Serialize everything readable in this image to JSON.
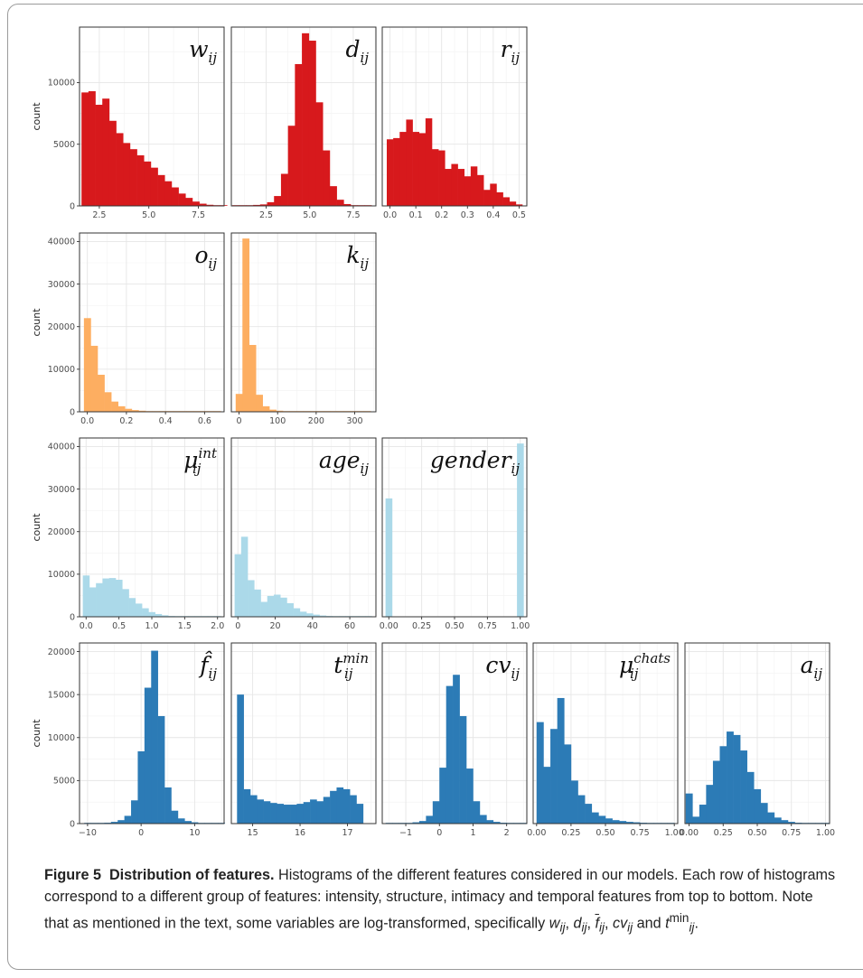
{
  "caption": {
    "figure_label": "Figure 5",
    "title": "Distribution of features.",
    "text_1": "Histograms of the different features considered in our models. Each row of histograms correspond to a different group of features: intensity, structure, intimacy and temporal features from top to bottom. Note that as mentioned in the text, some variables are log-transformed, specifically",
    "var_w": "w",
    "var_d": "d",
    "var_f": "f",
    "var_cv": "cv",
    "var_t": "t",
    "sub_ij": "ij",
    "sup_min": "min",
    "sep": ", ",
    "and": " and ",
    "end": "."
  },
  "colors": {
    "intensity": "#d7191c",
    "structure": "#fdae61",
    "intimacy": "#abd9e9",
    "temporal": "#2c7bb6"
  },
  "chart_data": [
    {
      "type": "histogram",
      "row": 1,
      "label": "w",
      "sub": "ij",
      "color": "#d7191c",
      "ylabel": "count",
      "xlim": [
        1.5,
        8.8
      ],
      "ylim": [
        0,
        14500
      ],
      "xticks": [
        2.5,
        5.0,
        7.5
      ],
      "xtick_labels": [
        "2.5",
        "5.0",
        "7.5"
      ],
      "yticks": [
        0,
        5000,
        10000
      ],
      "ytick_labels": [
        "0",
        "5000",
        "10000"
      ],
      "bin_start": 1.6,
      "bin_width": 0.35,
      "values": [
        9200,
        9300,
        8200,
        8700,
        6900,
        5900,
        5100,
        4600,
        4100,
        3600,
        3100,
        2500,
        2000,
        1500,
        1000,
        650,
        350,
        180,
        90,
        60,
        30
      ]
    },
    {
      "type": "histogram",
      "row": 1,
      "label": "d",
      "sub": "ij",
      "color": "#d7191c",
      "ylabel": "",
      "xlim": [
        0.5,
        8.8
      ],
      "ylim": [
        0,
        14500
      ],
      "xticks": [
        2.5,
        5.0,
        7.5
      ],
      "xtick_labels": [
        "2.5",
        "5.0",
        "7.5"
      ],
      "yticks": [],
      "ytick_labels": [],
      "bin_start": 0.55,
      "bin_width": 0.4,
      "values": [
        20,
        30,
        50,
        80,
        120,
        300,
        800,
        2600,
        6500,
        11500,
        14000,
        13400,
        8400,
        4500,
        1600,
        500,
        150,
        60,
        30,
        20
      ]
    },
    {
      "type": "histogram",
      "row": 1,
      "label": "r",
      "sub": "ij",
      "color": "#d7191c",
      "ylabel": "",
      "xlim": [
        -0.03,
        0.53
      ],
      "ylim": [
        0,
        14500
      ],
      "xticks": [
        0.0,
        0.1,
        0.2,
        0.3,
        0.4,
        0.5
      ],
      "xtick_labels": [
        "0.0",
        "0.1",
        "0.2",
        "0.3",
        "0.4",
        "0.5"
      ],
      "yticks": [],
      "ytick_labels": [],
      "bin_start": -0.0125,
      "bin_width": 0.025,
      "values": [
        5400,
        5500,
        6000,
        7000,
        6000,
        5900,
        7100,
        4600,
        4500,
        3000,
        3400,
        3000,
        2400,
        3200,
        2500,
        1300,
        1800,
        1100,
        700,
        350,
        120
      ]
    },
    {
      "type": "histogram",
      "row": 2,
      "label": "o",
      "sub": "ij",
      "color": "#fdae61",
      "ylabel": "count",
      "xlim": [
        -0.04,
        0.7
      ],
      "ylim": [
        0,
        42000
      ],
      "xticks": [
        0.0,
        0.2,
        0.4,
        0.6
      ],
      "xtick_labels": [
        "0.0",
        "0.2",
        "0.4",
        "0.6"
      ],
      "yticks": [
        0,
        10000,
        20000,
        30000,
        40000
      ],
      "ytick_labels": [
        "0",
        "10000",
        "20000",
        "30000",
        "40000"
      ],
      "bin_start": -0.0175,
      "bin_width": 0.035,
      "values": [
        22000,
        15500,
        8700,
        4600,
        2400,
        1300,
        700,
        400,
        250,
        150,
        100,
        80,
        60,
        50,
        40,
        30,
        20,
        15,
        10,
        10
      ]
    },
    {
      "type": "histogram",
      "row": 2,
      "label": "k",
      "sub": "ij",
      "color": "#fdae61",
      "ylabel": "",
      "xlim": [
        -20,
        355
      ],
      "ylim": [
        0,
        42000
      ],
      "xticks": [
        0,
        100,
        200,
        300
      ],
      "xtick_labels": [
        "0",
        "100",
        "200",
        "300"
      ],
      "yticks": [],
      "ytick_labels": [],
      "bin_start": -8.75,
      "bin_width": 17.5,
      "values": [
        4200,
        40700,
        15700,
        4000,
        1300,
        500,
        250,
        150,
        100,
        80,
        60,
        50,
        40,
        30,
        20,
        15,
        10,
        10,
        5,
        5
      ]
    },
    {
      "type": "histogram",
      "row": 3,
      "label": "μ",
      "sub": "ij",
      "sup": "int",
      "color": "#abd9e9",
      "ylabel": "count",
      "xlim": [
        -0.1,
        2.1
      ],
      "ylim": [
        0,
        42000
      ],
      "xticks": [
        0.0,
        0.5,
        1.0,
        1.5,
        2.0
      ],
      "xtick_labels": [
        "0.0",
        "0.5",
        "1.0",
        "1.5",
        "2.0"
      ],
      "yticks": [
        0,
        10000,
        20000,
        30000,
        40000
      ],
      "ytick_labels": [
        "0",
        "10000",
        "20000",
        "30000",
        "40000"
      ],
      "bin_start": -0.05,
      "bin_width": 0.1,
      "values": [
        9700,
        6900,
        7900,
        9000,
        9100,
        8700,
        6500,
        4400,
        3100,
        2000,
        1100,
        650,
        350,
        200,
        120,
        80,
        50,
        30,
        20,
        10,
        5
      ]
    },
    {
      "type": "histogram",
      "row": 3,
      "label": "age",
      "sub": "ij",
      "color": "#abd9e9",
      "ylabel": "",
      "xlim": [
        -3.5,
        74
      ],
      "ylim": [
        0,
        42000
      ],
      "xticks": [
        0,
        20,
        40,
        60
      ],
      "xtick_labels": [
        "0",
        "20",
        "40",
        "60"
      ],
      "yticks": [],
      "ytick_labels": [],
      "bin_start": -1.75,
      "bin_width": 3.5,
      "values": [
        14700,
        18800,
        8600,
        6400,
        3500,
        4900,
        5200,
        4500,
        3200,
        2000,
        1200,
        800,
        500,
        300,
        200,
        100,
        80,
        50,
        30,
        20,
        10
      ]
    },
    {
      "type": "histogram",
      "row": 3,
      "label": "gender",
      "sub": "ij",
      "color": "#abd9e9",
      "ylabel": "",
      "xlim": [
        -0.05,
        1.05
      ],
      "ylim": [
        0,
        42000
      ],
      "xticks": [
        0.0,
        0.25,
        0.5,
        0.75,
        1.0
      ],
      "xtick_labels": [
        "0.00",
        "0.25",
        "0.50",
        "0.75",
        "1.00"
      ],
      "yticks": [],
      "ytick_labels": [],
      "bin_start": -0.025,
      "bin_width": 0.05,
      "values": [
        27800,
        0,
        0,
        0,
        0,
        0,
        0,
        0,
        0,
        0,
        0,
        0,
        0,
        0,
        0,
        0,
        0,
        0,
        0,
        0,
        40700
      ]
    },
    {
      "type": "histogram",
      "row": 4,
      "label": "f̂",
      "sub": "ij",
      "color": "#2c7bb6",
      "ylabel": "count",
      "xlim": [
        -11.5,
        15.5
      ],
      "ylim": [
        0,
        21000
      ],
      "xticks": [
        -10,
        0,
        10
      ],
      "xtick_labels": [
        "−10",
        "0",
        "10"
      ],
      "yticks": [
        0,
        5000,
        10000,
        15000,
        20000
      ],
      "ytick_labels": [
        "0",
        "5000",
        "10000",
        "15000",
        "20000"
      ],
      "bin_start": -10.625,
      "bin_width": 1.25,
      "values": [
        30,
        40,
        60,
        100,
        200,
        400,
        900,
        2700,
        8400,
        15800,
        20100,
        12500,
        4200,
        1500,
        600,
        300,
        150,
        80,
        50,
        30,
        20
      ]
    },
    {
      "type": "histogram",
      "row": 4,
      "label": "t",
      "sub": "ij",
      "sup": "min",
      "color": "#2c7bb6",
      "ylabel": "",
      "xlim": [
        14.55,
        17.6
      ],
      "ylim": [
        0,
        21000
      ],
      "xticks": [
        15,
        16,
        17
      ],
      "xtick_labels": [
        "15",
        "16",
        "17"
      ],
      "yticks": [],
      "ytick_labels": [],
      "bin_start": 14.67,
      "bin_width": 0.14,
      "values": [
        15000,
        4000,
        3300,
        2800,
        2600,
        2400,
        2300,
        2200,
        2200,
        2300,
        2500,
        2800,
        2600,
        3100,
        3800,
        4200,
        4000,
        3300,
        2300
      ]
    },
    {
      "type": "histogram",
      "row": 4,
      "label": "cv",
      "sub": "ij",
      "color": "#2c7bb6",
      "ylabel": "",
      "xlim": [
        -1.7,
        2.6
      ],
      "ylim": [
        0,
        21000
      ],
      "xticks": [
        -1,
        0,
        1,
        2
      ],
      "xtick_labels": [
        "−1",
        "0",
        "1",
        "2"
      ],
      "yticks": [],
      "ytick_labels": [],
      "bin_start": -1.6,
      "bin_width": 0.2,
      "values": [
        30,
        40,
        60,
        80,
        150,
        300,
        900,
        2600,
        6500,
        16000,
        17300,
        12500,
        6400,
        2600,
        1000,
        400,
        200,
        100,
        50,
        30,
        20
      ]
    },
    {
      "type": "histogram",
      "row": 4,
      "label": "μ",
      "sub": "ij",
      "sup": "chats",
      "color": "#2c7bb6",
      "ylabel": "",
      "xlim": [
        -0.025,
        1.025
      ],
      "ylim": [
        0,
        21000
      ],
      "xticks": [
        0.0,
        0.25,
        0.5,
        0.75,
        1.0
      ],
      "xtick_labels": [
        "0.00",
        "0.25",
        "0.50",
        "0.75",
        "1.00"
      ],
      "yticks": [],
      "ytick_labels": [],
      "bin_start": 0.0,
      "bin_width": 0.05,
      "values": [
        11800,
        6600,
        11000,
        14600,
        9200,
        5000,
        3300,
        2300,
        1300,
        900,
        600,
        400,
        300,
        200,
        150,
        100,
        60,
        40,
        30,
        20
      ]
    },
    {
      "type": "histogram",
      "row": 4,
      "label": "a",
      "sub": "ij",
      "color": "#2c7bb6",
      "ylabel": "",
      "xlim": [
        -0.03,
        1.03
      ],
      "ylim": [
        0,
        21000
      ],
      "xticks": [
        0.0,
        0.25,
        0.5,
        0.75,
        1.0
      ],
      "xtick_labels": [
        "0.00",
        "0.25",
        "0.50",
        "0.75",
        "1.00"
      ],
      "yticks": [],
      "ytick_labels": [],
      "bin_start": -0.025,
      "bin_width": 0.05,
      "values": [
        3500,
        800,
        2200,
        4500,
        7300,
        9000,
        10700,
        10300,
        8500,
        6000,
        4000,
        2400,
        1300,
        700,
        400,
        200,
        100,
        50,
        30,
        20,
        10
      ]
    }
  ]
}
